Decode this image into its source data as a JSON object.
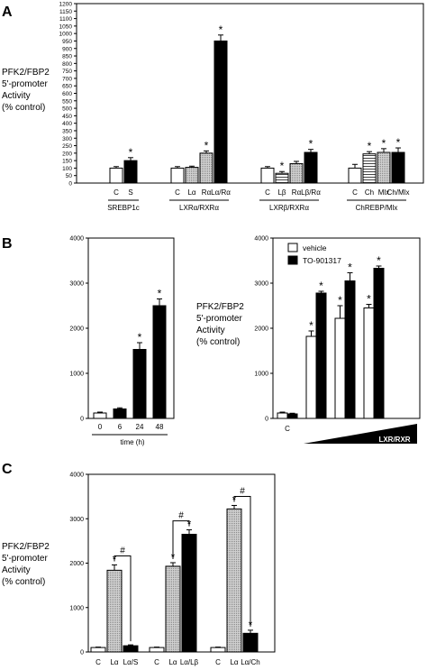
{
  "chart_data": [
    {
      "type": "bar",
      "panel": "A",
      "ylabel": [
        "PFK2/FBP2",
        "5'-promoter",
        "Activity",
        "(% control)"
      ],
      "ylim": [
        0,
        1200
      ],
      "yticks": [
        0,
        50,
        100,
        150,
        200,
        250,
        300,
        350,
        400,
        450,
        500,
        550,
        600,
        650,
        700,
        750,
        800,
        850,
        900,
        950,
        1000,
        1050,
        1100,
        1150,
        1200
      ],
      "groups": [
        {
          "label": "SREBP1c",
          "categories": [
            "C",
            "S"
          ],
          "values": [
            100,
            150
          ],
          "errors": [
            10,
            20
          ],
          "fills": [
            "white",
            "black"
          ],
          "sig": [
            false,
            true
          ]
        },
        {
          "label": "LXRα/RXRα",
          "categories": [
            "C",
            "Lα",
            "Rα",
            "Lα/Rα"
          ],
          "values": [
            100,
            105,
            200,
            950
          ],
          "errors": [
            10,
            8,
            15,
            40
          ],
          "fills": [
            "white",
            "lightgray",
            "lightgray",
            "black"
          ],
          "sig": [
            false,
            false,
            true,
            true
          ]
        },
        {
          "label": "LXRβ/RXRα",
          "categories": [
            "C",
            "Lβ",
            "Rα",
            "Lβ/Rα"
          ],
          "values": [
            100,
            65,
            130,
            205
          ],
          "errors": [
            10,
            12,
            15,
            20
          ],
          "fills": [
            "white",
            "hatch",
            "lightgray",
            "black"
          ],
          "sig": [
            false,
            true,
            false,
            true
          ]
        },
        {
          "label": "ChREBP/Mlx",
          "categories": [
            "C",
            "Ch",
            "Mlx",
            "Ch/Mlx"
          ],
          "values": [
            100,
            195,
            205,
            205
          ],
          "errors": [
            25,
            15,
            25,
            30
          ],
          "fills": [
            "white",
            "hatch",
            "lightgray",
            "black"
          ],
          "sig": [
            false,
            true,
            true,
            true
          ]
        }
      ]
    },
    {
      "type": "bar",
      "panel": "B",
      "subpanel": "time course",
      "ylim": [
        0,
        4000
      ],
      "yticks": [
        0,
        1000,
        2000,
        3000,
        4000
      ],
      "xlabel": "time (h)",
      "categories": [
        "0",
        "6",
        "24",
        "48"
      ],
      "values": [
        120,
        210,
        1530,
        2500
      ],
      "errors": [
        20,
        25,
        150,
        150
      ],
      "fills": [
        "white",
        "black",
        "black",
        "black"
      ],
      "sig": [
        false,
        false,
        true,
        true
      ]
    },
    {
      "type": "bar",
      "panel": "B",
      "subpanel": "dose",
      "ylabel": [
        "PFK2/FBP2",
        "5'-promoter",
        "Activity",
        "(% control)"
      ],
      "ylim": [
        0,
        4000
      ],
      "yticks": [
        0,
        1000,
        2000,
        3000,
        4000
      ],
      "control_label": "C",
      "gradient_label": "LXR/RXR",
      "legend": [
        {
          "name": "vehicle",
          "fill": "white"
        },
        {
          "name": "TO-901317",
          "fill": "black"
        }
      ],
      "groups": [
        {
          "vehicle": 120,
          "vehicle_err": 20,
          "to": 100,
          "to_err": 15,
          "sig_v": false,
          "sig_t": false
        },
        {
          "vehicle": 1820,
          "vehicle_err": 120,
          "to": 2780,
          "to_err": 40,
          "sig_v": true,
          "sig_t": true
        },
        {
          "vehicle": 2220,
          "vehicle_err": 280,
          "to": 3050,
          "to_err": 180,
          "sig_v": true,
          "sig_t": true
        },
        {
          "vehicle": 2450,
          "vehicle_err": 80,
          "to": 3330,
          "to_err": 50,
          "sig_v": true,
          "sig_t": true
        }
      ]
    },
    {
      "type": "bar",
      "panel": "C",
      "ylabel": [
        "PFK2/FBP2",
        "5'-promoter",
        "Activity",
        "(% control)"
      ],
      "ylim": [
        0,
        4000
      ],
      "yticks": [
        0,
        1000,
        2000,
        3000,
        4000
      ],
      "groups": [
        {
          "categories": [
            "C",
            "Lα",
            "Lα/S"
          ],
          "values": [
            100,
            1840,
            140
          ],
          "errors": [
            10,
            120,
            20
          ],
          "fills": [
            "white",
            "lightgray",
            "black"
          ],
          "sig": [
            false,
            true,
            false
          ],
          "hash": true
        },
        {
          "categories": [
            "C",
            "Lα",
            "Lα/Lβ"
          ],
          "values": [
            100,
            1930,
            2650
          ],
          "errors": [
            10,
            80,
            100
          ],
          "fills": [
            "white",
            "lightgray",
            "black"
          ],
          "sig": [
            false,
            true,
            true
          ],
          "hash": true
        },
        {
          "categories": [
            "C",
            "Lα",
            "Lα/Ch"
          ],
          "values": [
            100,
            3220,
            420
          ],
          "errors": [
            10,
            80,
            70
          ],
          "fills": [
            "white",
            "lightgray",
            "black"
          ],
          "sig": [
            false,
            true,
            true
          ],
          "hash": true
        }
      ]
    }
  ],
  "panel_labels": [
    "A",
    "B",
    "C"
  ],
  "sig_mark": "*",
  "hash_mark": "#"
}
